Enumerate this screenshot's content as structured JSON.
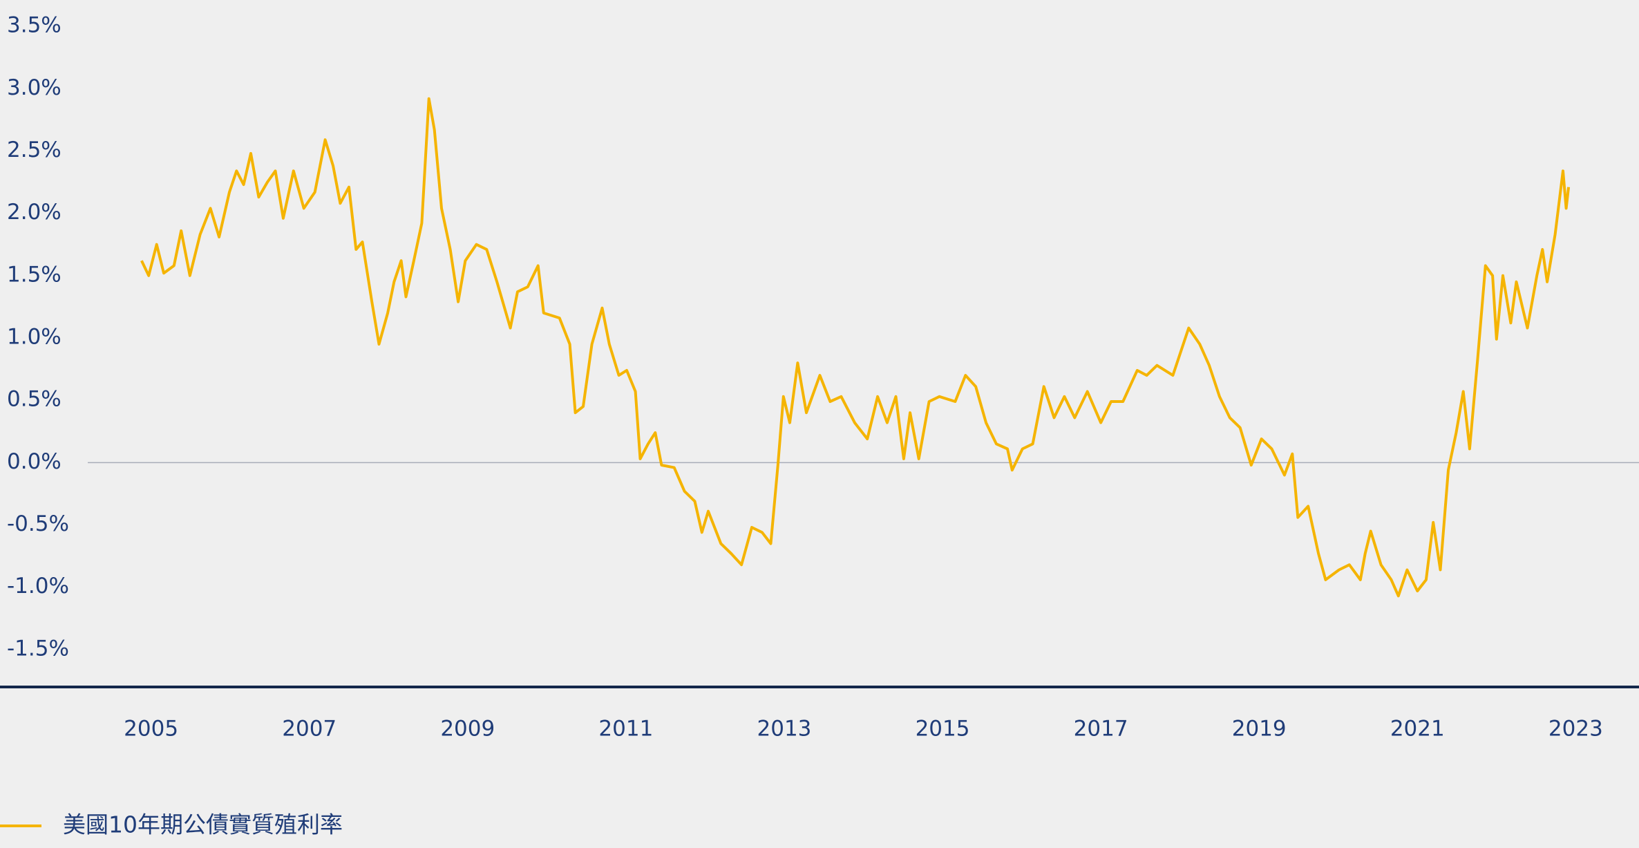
{
  "chart_data": {
    "type": "line",
    "x": [
      2004.88,
      2004.97,
      2005.07,
      2005.16,
      2005.29,
      2005.38,
      2005.49,
      2005.62,
      2005.75,
      2005.86,
      2005.99,
      2006.08,
      2006.17,
      2006.26,
      2006.36,
      2006.47,
      2006.57,
      2006.67,
      2006.8,
      2006.93,
      2007.07,
      2007.2,
      2007.3,
      2007.39,
      2007.5,
      2007.59,
      2007.67,
      2007.79,
      2007.88,
      2007.99,
      2008.07,
      2008.16,
      2008.22,
      2008.32,
      2008.42,
      2008.51,
      2008.58,
      2008.67,
      2008.78,
      2008.88,
      2008.97,
      2009.11,
      2009.24,
      2009.37,
      2009.54,
      2009.63,
      2009.76,
      2009.89,
      2009.96,
      2010.16,
      2010.29,
      2010.36,
      2010.46,
      2010.57,
      2010.7,
      2010.79,
      2010.91,
      2011.01,
      2011.12,
      2011.18,
      2011.28,
      2011.37,
      2011.45,
      2011.61,
      2011.74,
      2011.87,
      2011.96,
      2012.04,
      2012.2,
      2012.33,
      2012.46,
      2012.59,
      2012.72,
      2012.83,
      2012.92,
      2012.99,
      2013.07,
      2013.17,
      2013.28,
      2013.45,
      2013.58,
      2013.72,
      2013.89,
      2014.05,
      2014.18,
      2014.3,
      2014.41,
      2014.51,
      2014.59,
      2014.7,
      2014.83,
      2014.96,
      2015.16,
      2015.29,
      2015.42,
      2015.55,
      2015.68,
      2015.82,
      2015.88,
      2016.01,
      2016.14,
      2016.28,
      2016.41,
      2016.54,
      2016.67,
      2016.83,
      2017.0,
      2017.13,
      2017.28,
      2017.46,
      2017.58,
      2017.71,
      2017.91,
      2018.11,
      2018.25,
      2018.37,
      2018.5,
      2018.63,
      2018.76,
      2018.9,
      2019.03,
      2019.16,
      2019.32,
      2019.42,
      2019.49,
      2019.62,
      2019.75,
      2019.84,
      2020.01,
      2020.14,
      2020.28,
      2020.34,
      2020.41,
      2020.54,
      2020.67,
      2020.76,
      2020.87,
      2021.0,
      2021.11,
      2021.2,
      2021.29,
      2021.39,
      2021.49,
      2021.58,
      2021.66,
      2021.76,
      2021.86,
      2021.95,
      2022.0,
      2022.08,
      2022.18,
      2022.25,
      2022.39,
      2022.51,
      2022.58,
      2022.64,
      2022.74,
      2022.84,
      2022.88,
      2022.91
    ],
    "series": [
      {
        "name": "美國10年期公債實質殖利率",
        "color": "#f5b400",
        "values": [
          1.62,
          1.5,
          1.75,
          1.52,
          1.58,
          1.86,
          1.5,
          1.83,
          2.04,
          1.81,
          2.17,
          2.34,
          2.23,
          2.48,
          2.13,
          2.25,
          2.34,
          1.96,
          2.34,
          2.04,
          2.17,
          2.59,
          2.38,
          2.08,
          2.21,
          1.71,
          1.77,
          1.29,
          0.95,
          1.2,
          1.45,
          1.62,
          1.33,
          1.62,
          1.92,
          2.92,
          2.67,
          2.04,
          1.71,
          1.29,
          1.62,
          1.75,
          1.71,
          1.45,
          1.08,
          1.37,
          1.41,
          1.58,
          1.2,
          1.16,
          0.95,
          0.4,
          0.45,
          0.95,
          1.24,
          0.95,
          0.7,
          0.74,
          0.57,
          0.03,
          0.15,
          0.24,
          -0.02,
          -0.04,
          -0.23,
          -0.31,
          -0.56,
          -0.39,
          -0.65,
          -0.73,
          -0.82,
          -0.52,
          -0.56,
          -0.65,
          -0.02,
          0.53,
          0.32,
          0.8,
          0.4,
          0.7,
          0.49,
          0.53,
          0.32,
          0.19,
          0.53,
          0.32,
          0.53,
          0.03,
          0.4,
          0.03,
          0.49,
          0.53,
          0.49,
          0.7,
          0.61,
          0.32,
          0.15,
          0.11,
          -0.06,
          0.11,
          0.15,
          0.61,
          0.36,
          0.53,
          0.36,
          0.57,
          0.32,
          0.49,
          0.49,
          0.74,
          0.7,
          0.78,
          0.7,
          1.08,
          0.95,
          0.78,
          0.53,
          0.36,
          0.28,
          -0.02,
          0.19,
          0.11,
          -0.1,
          0.07,
          -0.44,
          -0.35,
          -0.73,
          -0.94,
          -0.86,
          -0.82,
          -0.94,
          -0.73,
          -0.55,
          -0.82,
          -0.94,
          -1.07,
          -0.86,
          -1.03,
          -0.94,
          -0.48,
          -0.86,
          -0.06,
          0.24,
          0.57,
          0.11,
          0.82,
          1.58,
          1.5,
          0.99,
          1.5,
          1.12,
          1.45,
          1.08,
          1.5,
          1.71,
          1.45,
          1.83,
          2.34,
          2.04,
          2.21
        ]
      }
    ],
    "xlim": [
      2004.2,
      2023.8
    ],
    "xticks": [
      2005,
      2007,
      2009,
      2011,
      2013,
      2015,
      2017,
      2019,
      2021,
      2023
    ],
    "ylim": [
      -1.8,
      3.7
    ],
    "yticks": [
      {
        "value": -1.5,
        "label": "-1.5%"
      },
      {
        "value": -1.0,
        "label": "-1.0%"
      },
      {
        "value": -0.5,
        "label": "-0.5%"
      },
      {
        "value": 0,
        "label": "0.0%"
      },
      {
        "value": 0.5,
        "label": "0.5%"
      },
      {
        "value": 1.0,
        "label": "1.0%"
      },
      {
        "value": 1.5,
        "label": "1.5%"
      },
      {
        "value": 2.0,
        "label": "2.0%"
      },
      {
        "value": 2.5,
        "label": "2.5%"
      },
      {
        "value": 3.0,
        "label": "3.0%"
      },
      {
        "value": 3.5,
        "label": "3.5%"
      }
    ],
    "grid": false,
    "legend": "bottom-left"
  }
}
